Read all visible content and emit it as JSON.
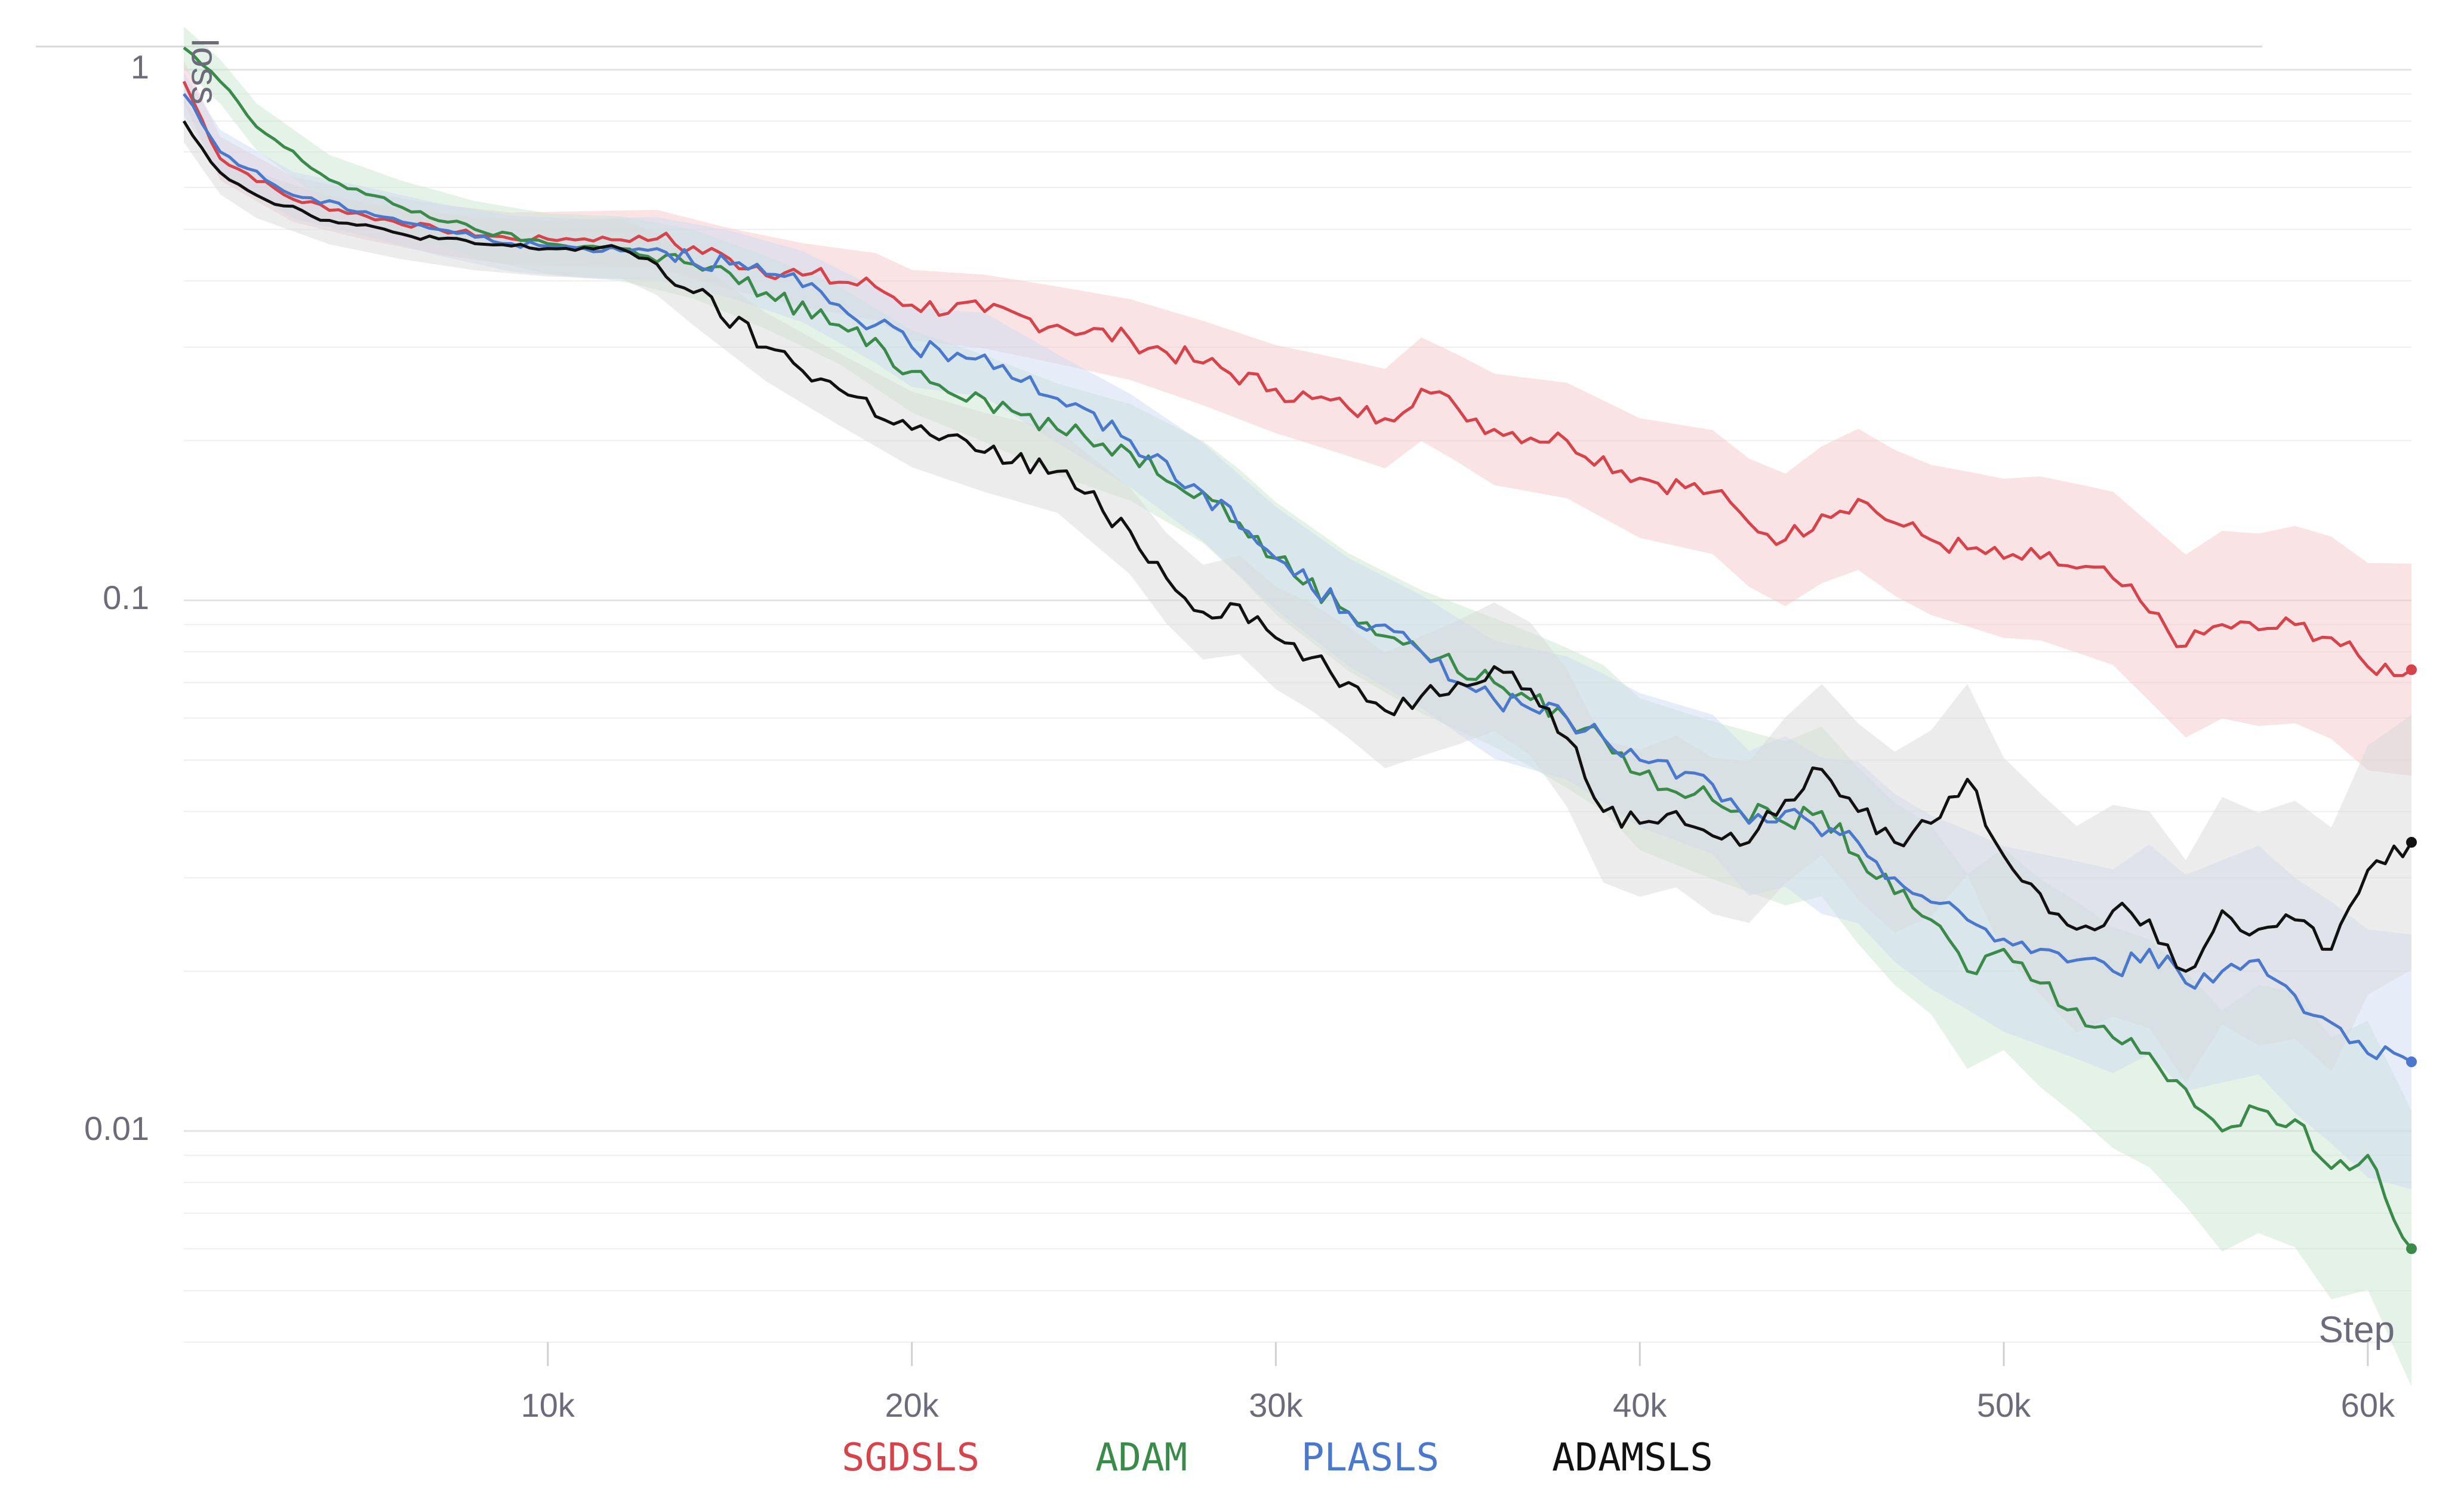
{
  "chart_data": {
    "type": "line",
    "xlabel": "Step",
    "ylabel": "loss",
    "yscale": "log",
    "xlim": [
      0,
      61200
    ],
    "ylim": [
      0.004,
      1.1
    ],
    "grid": true,
    "legend_position": "bottom",
    "x_ticks": [
      {
        "value": 10000,
        "label": "10k"
      },
      {
        "value": 20000,
        "label": "20k"
      },
      {
        "value": 30000,
        "label": "30k"
      },
      {
        "value": 40000,
        "label": "40k"
      },
      {
        "value": 50000,
        "label": "50k"
      },
      {
        "value": 60000,
        "label": "60k"
      }
    ],
    "y_ticks": [
      {
        "value": 1,
        "label": "1"
      },
      {
        "value": 0.1,
        "label": "0.1"
      },
      {
        "value": 0.01,
        "label": "0.01"
      }
    ],
    "series": [
      {
        "name": "SGDSLS",
        "color": "#d6434a",
        "band_color": "#f4c7c9",
        "points": [
          [
            0,
            0.95
          ],
          [
            1000,
            0.68
          ],
          [
            3000,
            0.57
          ],
          [
            5000,
            0.53
          ],
          [
            7000,
            0.5
          ],
          [
            9000,
            0.48
          ],
          [
            11000,
            0.48
          ],
          [
            13000,
            0.48
          ],
          [
            15000,
            0.44
          ],
          [
            17000,
            0.41
          ],
          [
            19000,
            0.39
          ],
          [
            20000,
            0.36
          ],
          [
            22000,
            0.35
          ],
          [
            24000,
            0.33
          ],
          [
            26000,
            0.31
          ],
          [
            28000,
            0.28
          ],
          [
            30000,
            0.25
          ],
          [
            31000,
            0.24
          ],
          [
            32000,
            0.23
          ],
          [
            33000,
            0.22
          ],
          [
            34000,
            0.25
          ],
          [
            35000,
            0.23
          ],
          [
            36000,
            0.21
          ],
          [
            38000,
            0.2
          ],
          [
            40000,
            0.17
          ],
          [
            42000,
            0.16
          ],
          [
            43000,
            0.14
          ],
          [
            44000,
            0.13
          ],
          [
            45000,
            0.145
          ],
          [
            46000,
            0.155
          ],
          [
            47000,
            0.14
          ],
          [
            48000,
            0.13
          ],
          [
            49000,
            0.125
          ],
          [
            50000,
            0.12
          ],
          [
            51000,
            0.12
          ],
          [
            52000,
            0.115
          ],
          [
            53000,
            0.11
          ],
          [
            54000,
            0.095
          ],
          [
            55000,
            0.082
          ],
          [
            56000,
            0.09
          ],
          [
            57000,
            0.088
          ],
          [
            58000,
            0.09
          ],
          [
            59000,
            0.085
          ],
          [
            60000,
            0.075
          ],
          [
            61200,
            0.074
          ]
        ]
      },
      {
        "name": "ADAM",
        "color": "#3a8a4a",
        "band_color": "#c9e6cf",
        "points": [
          [
            0,
            1.1
          ],
          [
            1000,
            0.95
          ],
          [
            2000,
            0.78
          ],
          [
            4000,
            0.62
          ],
          [
            6000,
            0.55
          ],
          [
            8000,
            0.5
          ],
          [
            10000,
            0.47
          ],
          [
            12000,
            0.46
          ],
          [
            14000,
            0.43
          ],
          [
            16000,
            0.38
          ],
          [
            18000,
            0.33
          ],
          [
            20000,
            0.27
          ],
          [
            22000,
            0.24
          ],
          [
            24000,
            0.21
          ],
          [
            26000,
            0.19
          ],
          [
            28000,
            0.16
          ],
          [
            29000,
            0.14
          ],
          [
            30000,
            0.12
          ],
          [
            32000,
            0.095
          ],
          [
            34000,
            0.08
          ],
          [
            36000,
            0.07
          ],
          [
            37000,
            0.065
          ],
          [
            38000,
            0.06
          ],
          [
            39000,
            0.055
          ],
          [
            40000,
            0.047
          ],
          [
            42000,
            0.042
          ],
          [
            44000,
            0.038
          ],
          [
            45000,
            0.04
          ],
          [
            46000,
            0.033
          ],
          [
            47000,
            0.028
          ],
          [
            48000,
            0.025
          ],
          [
            49000,
            0.02
          ],
          [
            50000,
            0.022
          ],
          [
            51000,
            0.019
          ],
          [
            52000,
            0.017
          ],
          [
            53000,
            0.015
          ],
          [
            54000,
            0.014
          ],
          [
            55000,
            0.012
          ],
          [
            56000,
            0.01
          ],
          [
            57000,
            0.011
          ],
          [
            58000,
            0.0105
          ],
          [
            59000,
            0.0085
          ],
          [
            60000,
            0.009
          ],
          [
            61200,
            0.006
          ]
        ]
      },
      {
        "name": "PLASLS",
        "color": "#4a78cc",
        "band_color": "#cddcf2",
        "points": [
          [
            0,
            0.9
          ],
          [
            1000,
            0.7
          ],
          [
            3000,
            0.58
          ],
          [
            5000,
            0.54
          ],
          [
            7000,
            0.5
          ],
          [
            9000,
            0.47
          ],
          [
            11000,
            0.46
          ],
          [
            13000,
            0.46
          ],
          [
            15000,
            0.43
          ],
          [
            17000,
            0.39
          ],
          [
            19000,
            0.33
          ],
          [
            20000,
            0.3
          ],
          [
            22000,
            0.29
          ],
          [
            24000,
            0.24
          ],
          [
            26000,
            0.2
          ],
          [
            28000,
            0.16
          ],
          [
            30000,
            0.12
          ],
          [
            32000,
            0.095
          ],
          [
            34000,
            0.08
          ],
          [
            36000,
            0.065
          ],
          [
            38000,
            0.06
          ],
          [
            39000,
            0.055
          ],
          [
            40000,
            0.05
          ],
          [
            42000,
            0.045
          ],
          [
            43000,
            0.038
          ],
          [
            44000,
            0.04
          ],
          [
            45000,
            0.036
          ],
          [
            46000,
            0.035
          ],
          [
            47000,
            0.03
          ],
          [
            48000,
            0.027
          ],
          [
            49000,
            0.025
          ],
          [
            50000,
            0.023
          ],
          [
            51000,
            0.022
          ],
          [
            52000,
            0.021
          ],
          [
            53000,
            0.02
          ],
          [
            54000,
            0.022
          ],
          [
            55000,
            0.019
          ],
          [
            56000,
            0.02
          ],
          [
            57000,
            0.021
          ],
          [
            58000,
            0.018
          ],
          [
            59000,
            0.016
          ],
          [
            60000,
            0.014
          ],
          [
            61200,
            0.0135
          ]
        ]
      },
      {
        "name": "ADAMSLS",
        "color": "#111111",
        "band_color": "#d9d9d9",
        "points": [
          [
            0,
            0.8
          ],
          [
            1000,
            0.64
          ],
          [
            2000,
            0.58
          ],
          [
            4000,
            0.52
          ],
          [
            6000,
            0.49
          ],
          [
            8000,
            0.47
          ],
          [
            10000,
            0.46
          ],
          [
            12000,
            0.46
          ],
          [
            13000,
            0.43
          ],
          [
            14000,
            0.38
          ],
          [
            16000,
            0.3
          ],
          [
            18000,
            0.25
          ],
          [
            20000,
            0.21
          ],
          [
            22000,
            0.19
          ],
          [
            24000,
            0.175
          ],
          [
            26000,
            0.135
          ],
          [
            27000,
            0.11
          ],
          [
            28000,
            0.095
          ],
          [
            29000,
            0.098
          ],
          [
            30000,
            0.085
          ],
          [
            31000,
            0.078
          ],
          [
            32000,
            0.07
          ],
          [
            33000,
            0.062
          ],
          [
            34000,
            0.066
          ],
          [
            35000,
            0.07
          ],
          [
            36000,
            0.075
          ],
          [
            37000,
            0.068
          ],
          [
            38000,
            0.055
          ],
          [
            39000,
            0.04
          ],
          [
            40000,
            0.038
          ],
          [
            41000,
            0.04
          ],
          [
            42000,
            0.036
          ],
          [
            43000,
            0.035
          ],
          [
            44000,
            0.042
          ],
          [
            45000,
            0.048
          ],
          [
            46000,
            0.04
          ],
          [
            47000,
            0.035
          ],
          [
            48000,
            0.038
          ],
          [
            49000,
            0.046
          ],
          [
            50000,
            0.033
          ],
          [
            51000,
            0.028
          ],
          [
            52000,
            0.024
          ],
          [
            53000,
            0.026
          ],
          [
            54000,
            0.025
          ],
          [
            55000,
            0.02
          ],
          [
            56000,
            0.026
          ],
          [
            57000,
            0.024
          ],
          [
            58000,
            0.025
          ],
          [
            59000,
            0.022
          ],
          [
            60000,
            0.031
          ],
          [
            61200,
            0.035
          ]
        ]
      }
    ]
  }
}
